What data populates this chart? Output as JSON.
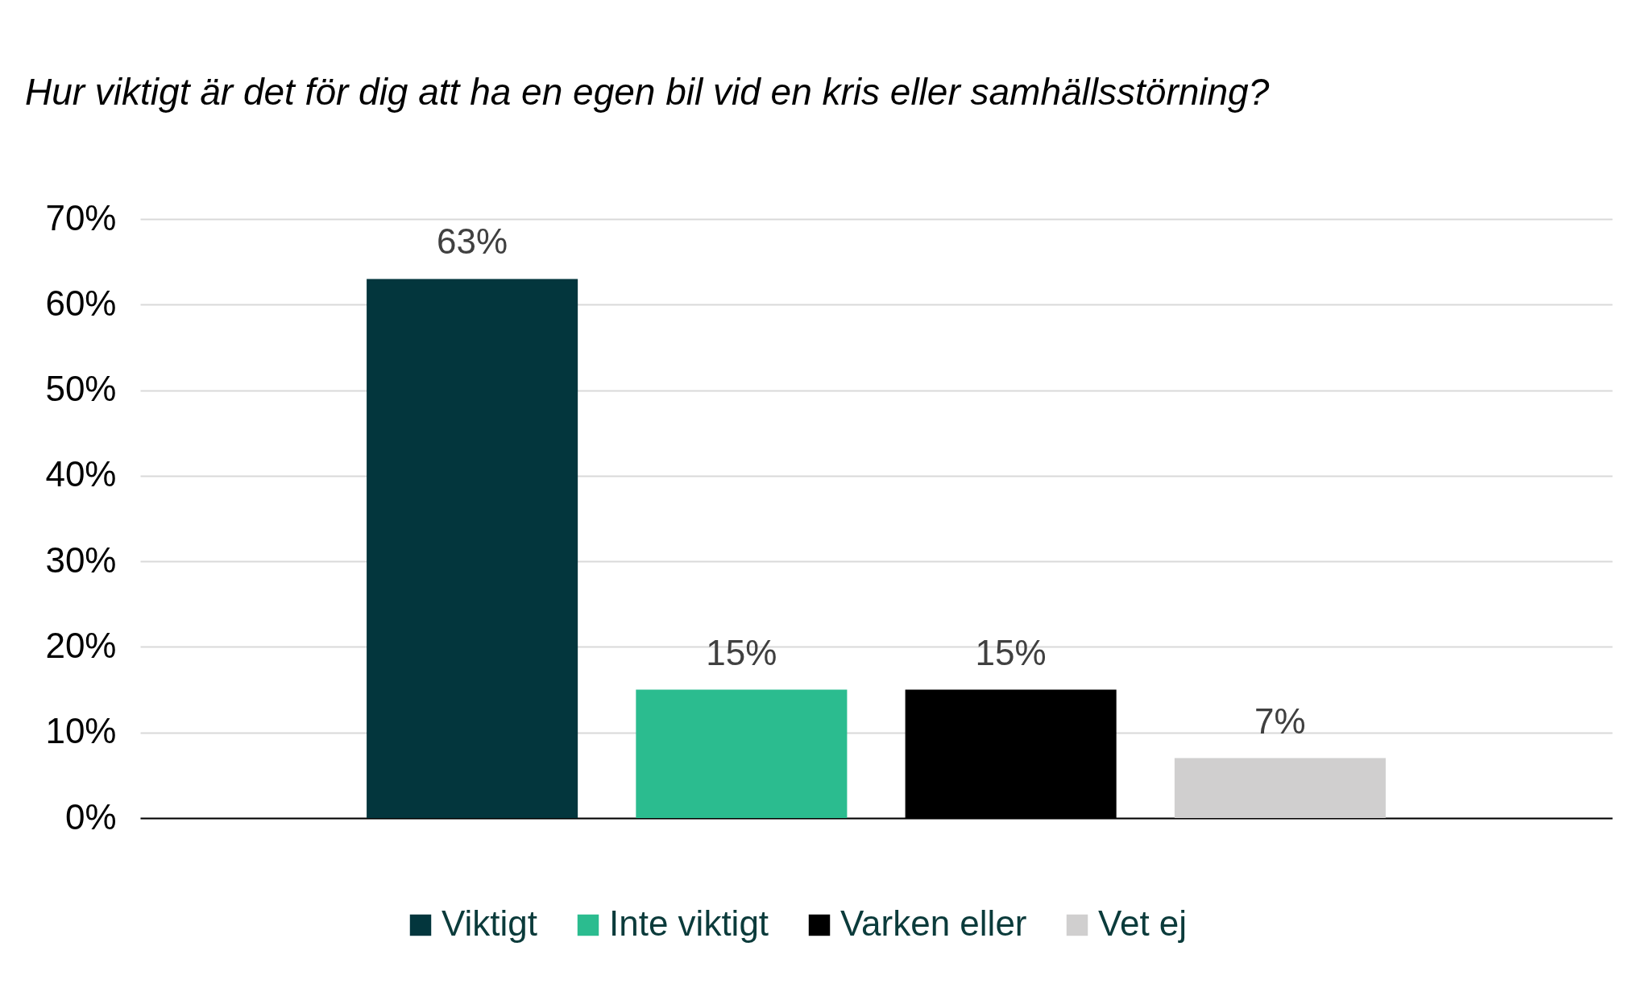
{
  "chart_data": {
    "type": "bar",
    "title": "Hur viktigt är det för dig att ha en egen bil vid en kris eller samhällsstörning?",
    "categories": [
      null
    ],
    "series": [
      {
        "name": "Viktigt",
        "color": "#03363d",
        "values": [
          63
        ],
        "value_labels": [
          "63%"
        ]
      },
      {
        "name": "Inte viktigt",
        "color": "#2bbc8f",
        "values": [
          15
        ],
        "value_labels": [
          "15%"
        ]
      },
      {
        "name": "Varken eller",
        "color": "#000000",
        "values": [
          15
        ],
        "value_labels": [
          "15%"
        ]
      },
      {
        "name": "Vet ej",
        "color": "#d0cfcf",
        "values": [
          7
        ],
        "value_labels": [
          "7%"
        ]
      }
    ],
    "ylim": [
      0,
      70
    ],
    "yticks": [
      {
        "value": 0,
        "label": "0%"
      },
      {
        "value": 10,
        "label": "10%"
      },
      {
        "value": 20,
        "label": "20%"
      },
      {
        "value": 30,
        "label": "30%"
      },
      {
        "value": 40,
        "label": "40%"
      },
      {
        "value": 50,
        "label": "50%"
      },
      {
        "value": 60,
        "label": "60%"
      },
      {
        "value": 70,
        "label": "70%"
      }
    ],
    "grid": "y",
    "legend": "bottom"
  }
}
